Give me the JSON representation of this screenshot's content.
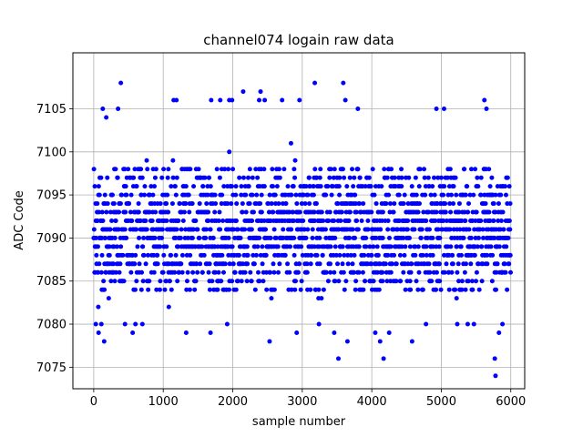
{
  "chart_data": {
    "type": "scatter",
    "title": "channel074 logain raw data",
    "xlabel": "sample number",
    "ylabel": "ADC Code",
    "xlim": [
      -300,
      6200
    ],
    "ylim": [
      7072.5,
      7111.5
    ],
    "xticks": [
      0,
      1000,
      2000,
      3000,
      4000,
      5000,
      6000
    ],
    "yticks": [
      7075,
      7080,
      7085,
      7090,
      7095,
      7100,
      7105
    ],
    "grid": true,
    "marker_color": "#0000ff",
    "n_samples": 6000,
    "band": {
      "dense_min": 7084,
      "dense_max": 7098,
      "sparse_min": 7081,
      "sparse_max": 7102
    },
    "outliers": [
      {
        "x": 30,
        "y": 7080
      },
      {
        "x": 70,
        "y": 7079
      },
      {
        "x": 110,
        "y": 7080
      },
      {
        "x": 130,
        "y": 7105
      },
      {
        "x": 150,
        "y": 7078
      },
      {
        "x": 180,
        "y": 7104
      },
      {
        "x": 350,
        "y": 7105
      },
      {
        "x": 390,
        "y": 7108
      },
      {
        "x": 450,
        "y": 7080
      },
      {
        "x": 560,
        "y": 7079
      },
      {
        "x": 600,
        "y": 7080
      },
      {
        "x": 700,
        "y": 7080
      },
      {
        "x": 1150,
        "y": 7106
      },
      {
        "x": 1190,
        "y": 7106
      },
      {
        "x": 1330,
        "y": 7079
      },
      {
        "x": 1690,
        "y": 7106
      },
      {
        "x": 1680,
        "y": 7079
      },
      {
        "x": 1820,
        "y": 7106
      },
      {
        "x": 1920,
        "y": 7080
      },
      {
        "x": 1950,
        "y": 7106
      },
      {
        "x": 1990,
        "y": 7106
      },
      {
        "x": 2150,
        "y": 7107
      },
      {
        "x": 2380,
        "y": 7106
      },
      {
        "x": 2400,
        "y": 7107
      },
      {
        "x": 2460,
        "y": 7106
      },
      {
        "x": 2530,
        "y": 7078
      },
      {
        "x": 2710,
        "y": 7106
      },
      {
        "x": 2920,
        "y": 7079
      },
      {
        "x": 2960,
        "y": 7106
      },
      {
        "x": 3180,
        "y": 7108
      },
      {
        "x": 3240,
        "y": 7080
      },
      {
        "x": 3460,
        "y": 7079
      },
      {
        "x": 3520,
        "y": 7076
      },
      {
        "x": 3590,
        "y": 7108
      },
      {
        "x": 3620,
        "y": 7106
      },
      {
        "x": 3650,
        "y": 7078
      },
      {
        "x": 3800,
        "y": 7105
      },
      {
        "x": 4050,
        "y": 7079
      },
      {
        "x": 4120,
        "y": 7078
      },
      {
        "x": 4170,
        "y": 7076
      },
      {
        "x": 4250,
        "y": 7079
      },
      {
        "x": 4580,
        "y": 7078
      },
      {
        "x": 4780,
        "y": 7080
      },
      {
        "x": 4930,
        "y": 7105
      },
      {
        "x": 5040,
        "y": 7105
      },
      {
        "x": 5230,
        "y": 7080
      },
      {
        "x": 5380,
        "y": 7080
      },
      {
        "x": 5470,
        "y": 7080
      },
      {
        "x": 5620,
        "y": 7106
      },
      {
        "x": 5650,
        "y": 7105
      },
      {
        "x": 5770,
        "y": 7076
      },
      {
        "x": 5780,
        "y": 7074
      },
      {
        "x": 5830,
        "y": 7079
      },
      {
        "x": 5880,
        "y": 7080
      }
    ]
  }
}
